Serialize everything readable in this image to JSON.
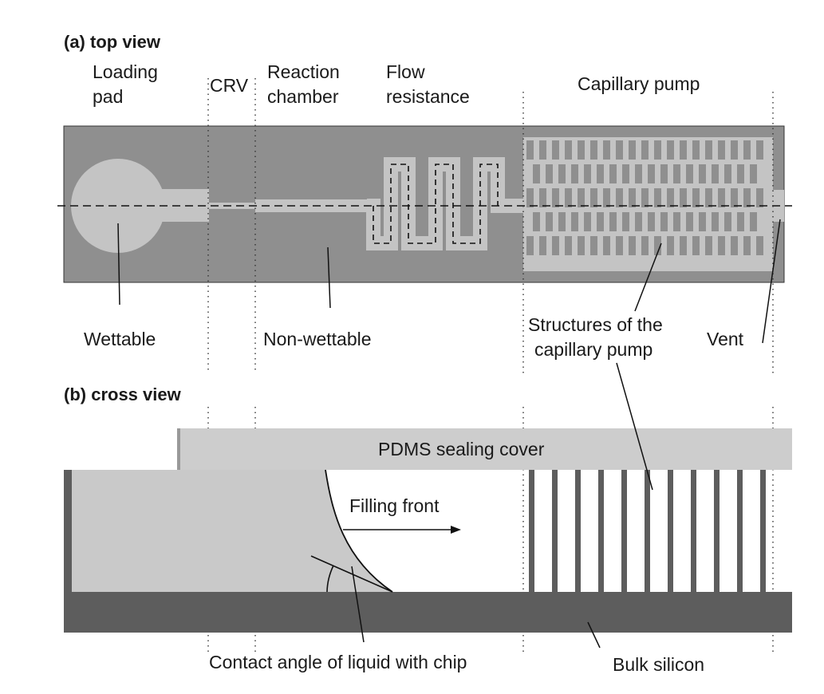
{
  "top_view": {
    "heading": "(a) top view",
    "labels": {
      "loading_pad": [
        "Loading",
        "pad"
      ],
      "crv": "CRV",
      "reaction_chamber": [
        "Reaction",
        "chamber"
      ],
      "flow_resistance": [
        "Flow",
        "resistance"
      ],
      "capillary_pump": "Capillary pump",
      "wettable": "Wettable",
      "non_wettable": "Non-wettable",
      "structures": [
        "Structures of the",
        "capillary pump"
      ],
      "vent": "Vent"
    }
  },
  "cross_view": {
    "heading": "(b) cross view",
    "labels": {
      "pdms_cover": "PDMS sealing cover",
      "filling_front": "Filling front",
      "contact_angle": "Contact angle of liquid with chip",
      "bulk_silicon": "Bulk silicon"
    }
  },
  "colors": {
    "chip_gray": "#8f8f8f",
    "wettable_light": "#c4c4c4",
    "silicon_dark": "#5d5d5d",
    "pdms_light": "#cdcdcd",
    "liquid_light": "#c9c9c9",
    "line": "#1a1a1a"
  }
}
